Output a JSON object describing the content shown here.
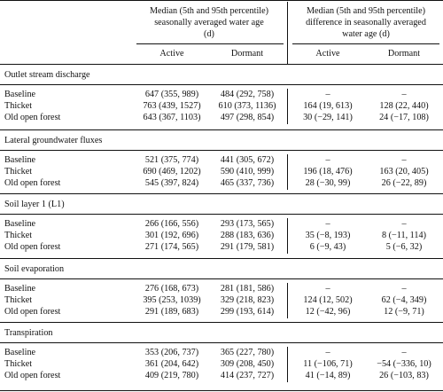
{
  "header": {
    "group1": [
      "Median (5th and 95th percentile)",
      "seasonally averaged water age",
      "(d)"
    ],
    "group2": [
      "Median (5th and 95th percentile)",
      "difference in seasonally averaged",
      "water age (d)"
    ],
    "cols": [
      "Active",
      "Dormant",
      "Active",
      "Dormant"
    ]
  },
  "sections": [
    {
      "title": "Outlet stream discharge",
      "rows": [
        {
          "label": "Baseline",
          "a": "647 (355, 989)",
          "d": "484 (292, 758)",
          "da": "–",
          "dd": "–"
        },
        {
          "label": "Thicket",
          "a": "763 (439, 1527)",
          "d": "610 (373, 1136)",
          "da": "164 (19, 613)",
          "dd": "128 (22, 440)"
        },
        {
          "label": "Old open forest",
          "a": "643 (367, 1103)",
          "d": "497 (298, 854)",
          "da": "30 (−29, 141)",
          "dd": "24 (−17, 108)"
        }
      ]
    },
    {
      "title": "Lateral groundwater fluxes",
      "rows": [
        {
          "label": "Baseline",
          "a": "521 (375, 774)",
          "d": "441 (305, 672)",
          "da": "–",
          "dd": "–"
        },
        {
          "label": "Thicket",
          "a": "690 (469, 1202)",
          "d": "590 (410, 999)",
          "da": "196 (18, 476)",
          "dd": "163 (20, 405)"
        },
        {
          "label": "Old open forest",
          "a": "545 (397, 824)",
          "d": "465 (337, 736)",
          "da": "28 (−30, 99)",
          "dd": "26 (−22, 89)"
        }
      ]
    },
    {
      "title": "Soil layer 1 (L1)",
      "rows": [
        {
          "label": "Baseline",
          "a": "266 (166, 556)",
          "d": "293 (173, 565)",
          "da": "–",
          "dd": "–"
        },
        {
          "label": "Thicket",
          "a": "301 (192, 696)",
          "d": "288 (183, 636)",
          "da": "35 (−8, 193)",
          "dd": "8 (−11, 114)"
        },
        {
          "label": "Old open forest",
          "a": "271 (174, 565)",
          "d": "291 (179, 581)",
          "da": "6 (−9, 43)",
          "dd": "5 (−6, 32)"
        }
      ]
    },
    {
      "title": "Soil evaporation",
      "rows": [
        {
          "label": "Baseline",
          "a": "276 (168, 673)",
          "d": "281 (181, 586)",
          "da": "–",
          "dd": "–"
        },
        {
          "label": "Thicket",
          "a": "395 (253, 1039)",
          "d": "329 (218, 823)",
          "da": "124 (12, 502)",
          "dd": "62 (−4, 349)"
        },
        {
          "label": "Old open forest",
          "a": "291 (189, 683)",
          "d": "299 (193, 614)",
          "da": "12 (−42, 96)",
          "dd": "12 (−9, 71)"
        }
      ]
    },
    {
      "title": "Transpiration",
      "rows": [
        {
          "label": "Baseline",
          "a": "353 (206, 737)",
          "d": "365 (227, 780)",
          "da": "–",
          "dd": "–"
        },
        {
          "label": "Thicket",
          "a": "361 (204, 642)",
          "d": "309 (208, 450)",
          "da": "11 (−106, 71)",
          "dd": "−54 (−336, 10)"
        },
        {
          "label": "Old open forest",
          "a": "409 (219, 780)",
          "d": "414 (237, 727)",
          "da": "41 (−14, 89)",
          "dd": "26 (−103, 83)"
        }
      ]
    }
  ]
}
